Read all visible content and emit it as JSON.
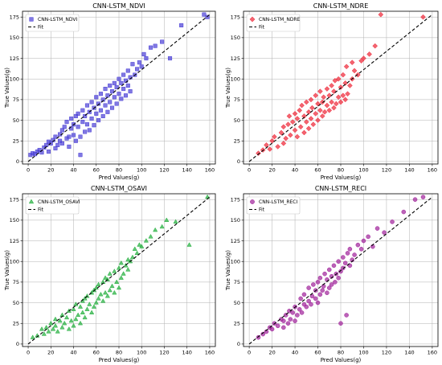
{
  "chart_data": [
    {
      "type": "scatter",
      "title": "CNN-LSTM_NDVI",
      "xlabel": "Pred Values(g)",
      "ylabel": "True Values(g)",
      "xlim": [
        -5,
        165
      ],
      "ylim": [
        -3,
        182
      ],
      "xticks": [
        0,
        20,
        40,
        60,
        80,
        100,
        120,
        140,
        160
      ],
      "yticks": [
        0,
        25,
        50,
        75,
        100,
        125,
        150,
        175
      ],
      "grid": true,
      "legend_position": "top-left",
      "marker": "square",
      "color": "#4a3fd6",
      "series": [
        {
          "name": "CNN-LSTM_NDVI",
          "x": [
            2,
            4,
            6,
            8,
            10,
            12,
            14,
            16,
            18,
            18,
            20,
            22,
            24,
            24,
            26,
            28,
            28,
            30,
            30,
            32,
            34,
            34,
            36,
            36,
            38,
            38,
            40,
            40,
            42,
            42,
            44,
            44,
            46,
            46,
            48,
            48,
            50,
            50,
            52,
            52,
            54,
            54,
            56,
            56,
            58,
            58,
            60,
            60,
            62,
            62,
            64,
            64,
            66,
            66,
            68,
            68,
            70,
            70,
            72,
            72,
            74,
            74,
            76,
            76,
            78,
            78,
            80,
            80,
            82,
            82,
            84,
            84,
            86,
            86,
            88,
            88,
            90,
            90,
            92,
            94,
            96,
            98,
            100,
            102,
            104,
            108,
            112,
            118,
            125,
            135,
            155,
            158
          ],
          "y": [
            8,
            10,
            9,
            12,
            14,
            11,
            17,
            20,
            12,
            24,
            22,
            26,
            16,
            30,
            20,
            33,
            25,
            38,
            22,
            42,
            28,
            48,
            30,
            18,
            40,
            52,
            32,
            45,
            25,
            55,
            42,
            58,
            30,
            8,
            48,
            62,
            36,
            55,
            45,
            68,
            38,
            60,
            52,
            72,
            44,
            65,
            58,
            78,
            50,
            70,
            62,
            82,
            55,
            75,
            68,
            88,
            60,
            80,
            72,
            92,
            65,
            85,
            78,
            95,
            70,
            90,
            82,
            100,
            76,
            95,
            88,
            105,
            80,
            98,
            92,
            110,
            85,
            102,
            118,
            105,
            112,
            120,
            115,
            130,
            125,
            138,
            140,
            145,
            125,
            165,
            178,
            175
          ]
        },
        {
          "name": "Fit",
          "line": "dashed",
          "color": "#000000",
          "x": [
            0,
            160
          ],
          "y": [
            0,
            178
          ]
        }
      ]
    },
    {
      "type": "scatter",
      "title": "CNN-LSTM_NDRE",
      "xlabel": "Pred Values(g)",
      "ylabel": "True Values(g)",
      "xlim": [
        -5,
        165
      ],
      "ylim": [
        -3,
        182
      ],
      "xticks": [
        0,
        20,
        40,
        60,
        80,
        100,
        120,
        140,
        160
      ],
      "yticks": [
        0,
        25,
        50,
        75,
        100,
        125,
        150,
        175
      ],
      "grid": true,
      "legend_position": "top-left",
      "marker": "diamond",
      "color": "#ee2233",
      "series": [
        {
          "name": "CNN-LSTM_NDRE",
          "x": [
            8,
            12,
            15,
            18,
            20,
            22,
            25,
            28,
            30,
            30,
            32,
            34,
            35,
            36,
            38,
            40,
            40,
            42,
            42,
            44,
            45,
            46,
            48,
            48,
            50,
            50,
            52,
            52,
            54,
            54,
            55,
            56,
            58,
            58,
            60,
            60,
            62,
            62,
            64,
            64,
            65,
            66,
            68,
            68,
            70,
            70,
            72,
            72,
            74,
            74,
            75,
            76,
            78,
            78,
            80,
            80,
            82,
            82,
            84,
            84,
            85,
            86,
            88,
            90,
            90,
            92,
            95,
            98,
            100,
            105,
            110,
            115,
            152
          ],
          "y": [
            10,
            14,
            20,
            15,
            25,
            30,
            18,
            35,
            22,
            42,
            28,
            45,
            55,
            32,
            48,
            38,
            58,
            30,
            52,
            62,
            42,
            68,
            35,
            55,
            48,
            72,
            40,
            60,
            52,
            75,
            65,
            45,
            58,
            80,
            50,
            70,
            62,
            85,
            55,
            72,
            78,
            60,
            68,
            88,
            62,
            80,
            72,
            92,
            65,
            85,
            98,
            70,
            78,
            100,
            72,
            90,
            80,
            105,
            75,
            95,
            115,
            82,
            92,
            120,
            100,
            110,
            105,
            122,
            125,
            130,
            140,
            178,
            175
          ]
        },
        {
          "name": "Fit",
          "line": "dashed",
          "color": "#000000",
          "x": [
            0,
            160
          ],
          "y": [
            0,
            178
          ]
        }
      ]
    },
    {
      "type": "scatter",
      "title": "CNN-LSTM_OSAVI",
      "xlabel": "Pred Values(g)",
      "ylabel": "True Values(g)",
      "xlim": [
        -5,
        165
      ],
      "ylim": [
        -3,
        182
      ],
      "xticks": [
        0,
        20,
        40,
        60,
        80,
        100,
        120,
        140,
        160
      ],
      "yticks": [
        0,
        25,
        50,
        75,
        100,
        125,
        150,
        175
      ],
      "grid": true,
      "legend_position": "top-left",
      "marker": "triangle",
      "color": "#1fae3a",
      "series": [
        {
          "name": "CNN-LSTM_OSAVI",
          "x": [
            4,
            8,
            12,
            14,
            16,
            18,
            20,
            22,
            24,
            24,
            26,
            28,
            30,
            30,
            32,
            34,
            36,
            36,
            38,
            40,
            40,
            42,
            42,
            44,
            46,
            46,
            48,
            48,
            50,
            50,
            52,
            52,
            54,
            56,
            56,
            58,
            58,
            60,
            60,
            62,
            62,
            64,
            66,
            66,
            68,
            68,
            70,
            70,
            72,
            72,
            74,
            76,
            76,
            78,
            80,
            80,
            82,
            82,
            84,
            86,
            88,
            88,
            90,
            92,
            94,
            96,
            98,
            100,
            104,
            108,
            112,
            118,
            122,
            130,
            142,
            158
          ],
          "y": [
            8,
            10,
            18,
            12,
            20,
            15,
            25,
            18,
            22,
            30,
            15,
            28,
            20,
            35,
            25,
            32,
            18,
            40,
            28,
            22,
            42,
            30,
            48,
            35,
            25,
            45,
            38,
            52,
            32,
            55,
            42,
            58,
            48,
            38,
            62,
            45,
            65,
            50,
            68,
            55,
            72,
            60,
            52,
            75,
            62,
            80,
            58,
            78,
            65,
            85,
            70,
            62,
            88,
            75,
            68,
            92,
            80,
            98,
            85,
            95,
            90,
            102,
            100,
            105,
            115,
            110,
            120,
            118,
            125,
            130,
            138,
            142,
            150,
            148,
            120,
            178
          ]
        },
        {
          "name": "Fit",
          "line": "dashed",
          "color": "#000000",
          "x": [
            0,
            160
          ],
          "y": [
            0,
            178
          ]
        }
      ]
    },
    {
      "type": "scatter",
      "title": "CNN-LSTM_RECI",
      "xlabel": "Pred Values(g)",
      "ylabel": "True Values(g)",
      "xlim": [
        -5,
        165
      ],
      "ylim": [
        -3,
        182
      ],
      "xticks": [
        0,
        20,
        40,
        60,
        80,
        100,
        120,
        140,
        160
      ],
      "yticks": [
        0,
        25,
        50,
        75,
        100,
        125,
        150,
        175
      ],
      "grid": true,
      "legend_position": "top-left",
      "marker": "circle",
      "color": "#a0219a",
      "series": [
        {
          "name": "CNN-LSTM_RECI",
          "x": [
            8,
            12,
            15,
            18,
            20,
            22,
            25,
            28,
            30,
            30,
            32,
            34,
            35,
            36,
            38,
            40,
            40,
            42,
            44,
            45,
            46,
            48,
            48,
            50,
            52,
            52,
            54,
            55,
            56,
            58,
            58,
            60,
            60,
            62,
            62,
            64,
            65,
            66,
            68,
            68,
            70,
            70,
            72,
            72,
            74,
            75,
            76,
            78,
            78,
            80,
            80,
            82,
            82,
            84,
            85,
            86,
            88,
            88,
            90,
            92,
            95,
            98,
            100,
            104,
            108,
            112,
            118,
            125,
            135,
            145,
            152
          ],
          "y": [
            8,
            12,
            15,
            20,
            18,
            25,
            22,
            30,
            20,
            28,
            35,
            25,
            40,
            30,
            38,
            28,
            45,
            35,
            42,
            55,
            38,
            48,
            60,
            45,
            52,
            68,
            48,
            58,
            72,
            55,
            65,
            50,
            75,
            60,
            80,
            65,
            70,
            85,
            62,
            78,
            68,
            90,
            72,
            82,
            95,
            75,
            85,
            80,
            100,
            25,
            88,
            92,
            105,
            98,
            35,
            110,
            95,
            115,
            102,
            108,
            120,
            115,
            125,
            130,
            118,
            140,
            135,
            148,
            160,
            175,
            178
          ]
        },
        {
          "name": "Fit",
          "line": "dashed",
          "color": "#000000",
          "x": [
            0,
            160
          ],
          "y": [
            0,
            178
          ]
        }
      ]
    }
  ]
}
